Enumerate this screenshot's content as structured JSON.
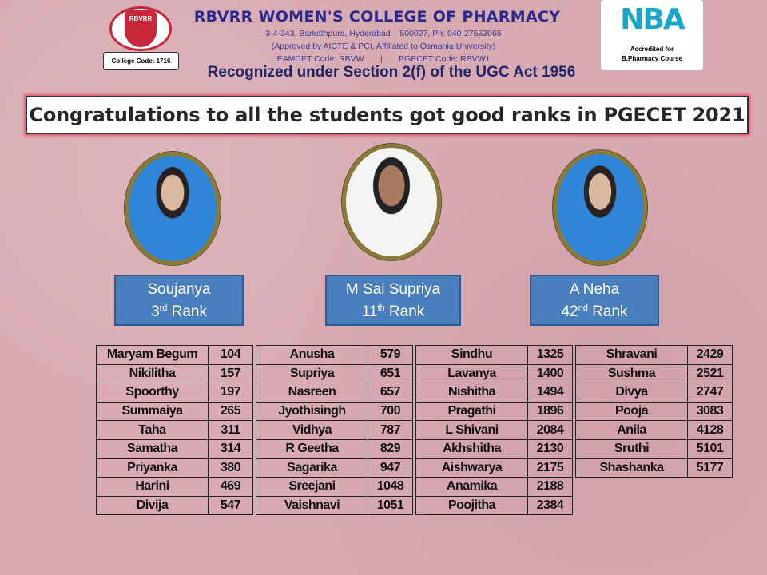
{
  "header": {
    "logo_text": "RBVRR",
    "college_code": "College Code: 1716",
    "college_name": "RBVRR WOMEN'S COLLEGE OF PHARMACY",
    "address": "3-4-343, Barkathpura, Hyderabad – 500027, Ph: 040-27563065",
    "approval": "(Approved by AICTE & PCI, Affiliated to Osmania University)",
    "codes": "EAMCET Code: RBVW       |       PGECET Code: RBVW1",
    "recognition": "Recognized under Section 2(f) of the UGC Act 1956",
    "nba_logo": "NBA",
    "nba_line1": "Accredited for",
    "nba_line2": "B.Pharmacy Course"
  },
  "banner": "Congratulations to all the students got good ranks in PGECET 2021",
  "toppers": [
    {
      "name": "Soujanya",
      "rank": "3",
      "suffix": "rd",
      "rank_word": "Rank"
    },
    {
      "name": "M Sai Supriya",
      "rank": "11",
      "suffix": "th",
      "rank_word": "Rank"
    },
    {
      "name": "A Neha",
      "rank": "42",
      "suffix": "nd",
      "rank_word": "Rank"
    }
  ],
  "tables": [
    [
      [
        "Maryam Begum",
        "104"
      ],
      [
        "Nikilitha",
        "157"
      ],
      [
        "Spoorthy",
        "197"
      ],
      [
        "Summaiya",
        "265"
      ],
      [
        "Taha",
        "311"
      ],
      [
        "Samatha",
        "314"
      ],
      [
        "Priyanka",
        "380"
      ],
      [
        "Harini",
        "469"
      ],
      [
        "Divija",
        "547"
      ]
    ],
    [
      [
        "Anusha",
        "579"
      ],
      [
        "Supriya",
        "651"
      ],
      [
        "Nasreen",
        "657"
      ],
      [
        "Jyothisingh",
        "700"
      ],
      [
        "Vidhya",
        "787"
      ],
      [
        "R Geetha",
        "829"
      ],
      [
        "Sagarika",
        "947"
      ],
      [
        "Sreejani",
        "1048"
      ],
      [
        "Vaishnavi",
        "1051"
      ]
    ],
    [
      [
        "Sindhu",
        "1325"
      ],
      [
        "Lavanya",
        "1400"
      ],
      [
        "Nishitha",
        "1494"
      ],
      [
        "Pragathi",
        "1896"
      ],
      [
        "L Shivani",
        "2084"
      ],
      [
        "Akhshitha",
        "2130"
      ],
      [
        "Aishwarya",
        "2175"
      ],
      [
        "Anamika",
        "2188"
      ],
      [
        "Poojitha",
        "2384"
      ]
    ],
    [
      [
        "Shravani",
        "2429"
      ],
      [
        "Sushma",
        "2521"
      ],
      [
        "Divya",
        "2747"
      ],
      [
        "Pooja",
        "3083"
      ],
      [
        "Anila",
        "4128"
      ],
      [
        "Sruthi",
        "5101"
      ],
      [
        "Shashanka",
        "5177"
      ]
    ]
  ]
}
